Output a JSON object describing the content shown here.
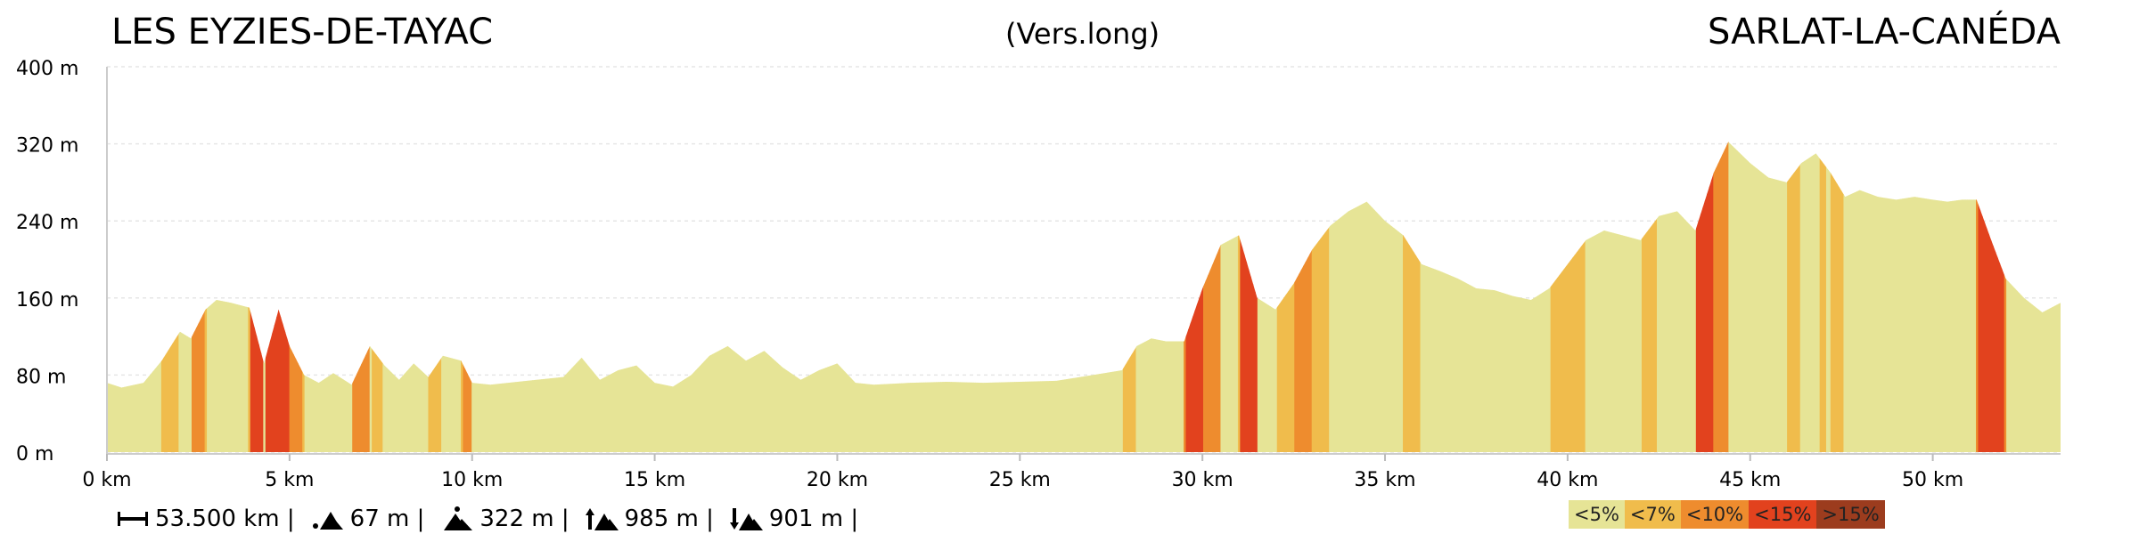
{
  "header": {
    "start_name": "LES EYZIES-DE-TAYAC",
    "route_variant": "(Vers.long)",
    "end_name": "SARLAT-LA-CANÉDA"
  },
  "stats": {
    "distance": "53.500 km |",
    "min_alt": "67 m |",
    "max_alt": "322 m |",
    "ascent": "985 m |",
    "descent": "901 m |"
  },
  "legend": [
    {
      "label": "<5%",
      "color": "#e6e496"
    },
    {
      "label": "<7%",
      "color": "#f0bc4c"
    },
    {
      "label": "<10%",
      "color": "#ee8c2e"
    },
    {
      "label": "<15%",
      "color": "#e2421e"
    },
    {
      "label": ">15%",
      "color": "#9c3c1e"
    }
  ],
  "chart_data": {
    "type": "area",
    "x_unit": "km",
    "y_unit": "m",
    "xlim": [
      0,
      53.5
    ],
    "ylim": [
      0,
      400
    ],
    "x_ticks": [
      0,
      5,
      10,
      15,
      20,
      25,
      30,
      35,
      40,
      45,
      50
    ],
    "x_tick_labels": [
      "0 km",
      "5 km",
      "10 km",
      "15 km",
      "20 km",
      "25 km",
      "30 km",
      "35 km",
      "40 km",
      "45 km",
      "50 km"
    ],
    "y_ticks": [
      0,
      80,
      160,
      240,
      320,
      400
    ],
    "y_tick_labels": [
      "0 m",
      "80 m",
      "160 m",
      "240 m",
      "320 m",
      "400 m"
    ],
    "grid": true,
    "x": [
      0,
      0.4,
      1,
      1.5,
      2,
      2.3,
      2.7,
      3,
      3.4,
      3.9,
      4.3,
      4.7,
      5.0,
      5.4,
      5.8,
      6.2,
      6.7,
      7.2,
      7.6,
      8.0,
      8.4,
      8.8,
      9.2,
      9.7,
      10.0,
      10.5,
      11.5,
      12.5,
      13.0,
      13.5,
      14.0,
      14.5,
      15.0,
      15.5,
      16.0,
      16.5,
      17.0,
      17.5,
      18.0,
      18.5,
      19.0,
      19.5,
      20.0,
      20.5,
      21.0,
      22.0,
      23.0,
      24.0,
      25.0,
      26.0,
      27.0,
      27.8,
      28.2,
      28.6,
      29.0,
      29.5,
      30.0,
      30.5,
      31.0,
      31.5,
      32.0,
      32.5,
      33.0,
      33.5,
      34.0,
      34.5,
      35.0,
      35.5,
      36.0,
      36.5,
      37.0,
      37.5,
      38.0,
      38.5,
      39.0,
      39.5,
      40.0,
      40.5,
      41.0,
      41.5,
      42.0,
      42.5,
      43.0,
      43.5,
      44.0,
      44.4,
      45.0,
      45.5,
      46.0,
      46.4,
      46.8,
      47.2,
      47.6,
      48.0,
      48.5,
      49.0,
      49.5,
      50.0,
      50.4,
      50.8,
      51.2,
      51.6,
      52.0,
      52.5,
      53.0,
      53.5
    ],
    "y": [
      72,
      67,
      72,
      95,
      125,
      118,
      148,
      158,
      155,
      150,
      92,
      148,
      110,
      80,
      72,
      82,
      70,
      110,
      90,
      75,
      92,
      78,
      100,
      95,
      72,
      70,
      74,
      78,
      98,
      75,
      85,
      90,
      72,
      68,
      80,
      100,
      110,
      95,
      105,
      88,
      75,
      85,
      92,
      72,
      70,
      72,
      73,
      72,
      73,
      74,
      80,
      85,
      110,
      118,
      115,
      115,
      170,
      215,
      225,
      160,
      148,
      175,
      210,
      235,
      250,
      260,
      240,
      225,
      195,
      188,
      180,
      170,
      168,
      162,
      158,
      170,
      195,
      220,
      230,
      225,
      220,
      245,
      250,
      230,
      290,
      322,
      300,
      285,
      280,
      300,
      310,
      290,
      265,
      272,
      265,
      262,
      265,
      262,
      260,
      262,
      262,
      220,
      180,
      160,
      145,
      155
    ]
  }
}
